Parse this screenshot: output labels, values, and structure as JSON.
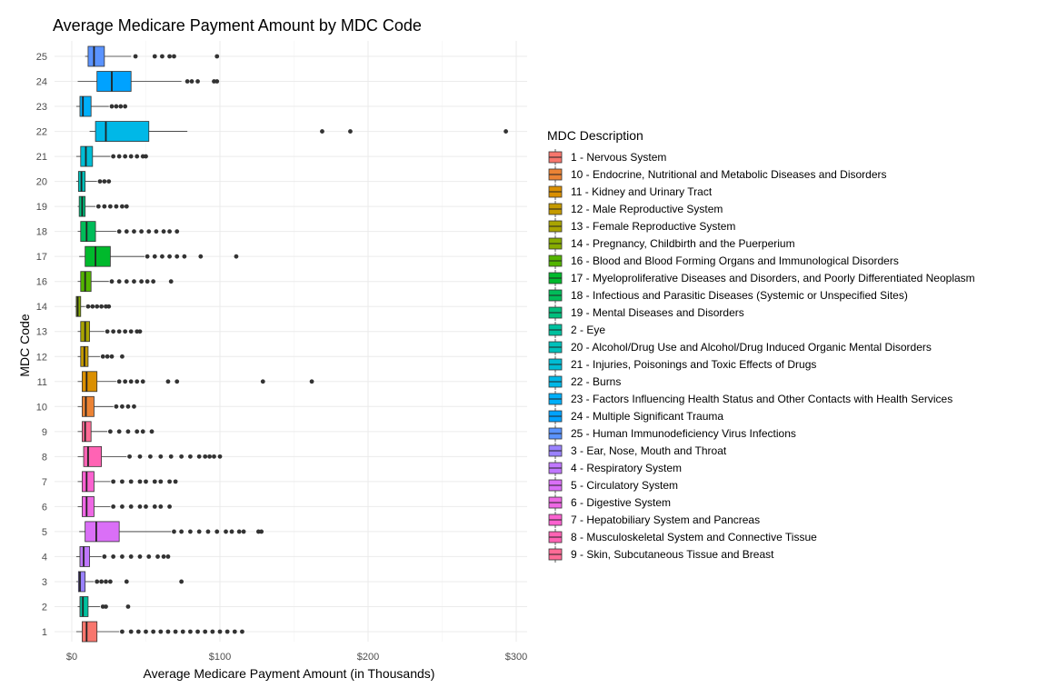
{
  "chart_data": {
    "type": "boxplot",
    "orientation": "horizontal",
    "title": "Average Medicare Payment Amount by MDC Code",
    "xlabel": "Average Medicare Payment Amount (in Thousands)",
    "ylabel": "MDC Code",
    "xlim": [
      -4,
      308
    ],
    "x_ticks": [
      0,
      100,
      200,
      300
    ],
    "x_tick_labels": [
      "$0",
      "$100",
      "$200",
      "$300"
    ],
    "grid": true,
    "legend_title": "MDC Description",
    "legend_position": "right",
    "categories": [
      "1",
      "2",
      "3",
      "4",
      "5",
      "6",
      "7",
      "8",
      "9",
      "10",
      "11",
      "12",
      "13",
      "14",
      "16",
      "17",
      "18",
      "19",
      "20",
      "21",
      "22",
      "23",
      "24",
      "25"
    ],
    "series": [
      {
        "code": "1",
        "min": 3,
        "q1": 7,
        "median": 10,
        "q3": 17,
        "max": 32,
        "outliers": [
          34,
          40,
          45,
          50,
          55,
          60,
          65,
          70,
          75,
          80,
          85,
          90,
          95,
          100,
          105,
          110,
          115
        ]
      },
      {
        "code": "2",
        "min": 4,
        "q1": 5.5,
        "median": 7.5,
        "q3": 11,
        "max": 19,
        "outliers": [
          21,
          23,
          38
        ]
      },
      {
        "code": "3",
        "min": 3,
        "q1": 4.5,
        "median": 5.5,
        "q3": 9,
        "max": 15,
        "outliers": [
          17,
          20,
          23,
          26,
          37,
          74
        ]
      },
      {
        "code": "4",
        "min": 3,
        "q1": 5.5,
        "median": 8,
        "q3": 12,
        "max": 20,
        "outliers": [
          22,
          28,
          34,
          40,
          46,
          52,
          58,
          62,
          65
        ]
      },
      {
        "code": "5",
        "min": 5,
        "q1": 9,
        "median": 16.5,
        "q3": 32,
        "max": 67,
        "outliers": [
          69,
          74,
          80,
          86,
          92,
          98,
          104,
          108,
          113,
          116,
          126,
          128
        ]
      },
      {
        "code": "6",
        "min": 4,
        "q1": 7,
        "median": 10,
        "q3": 15,
        "max": 26,
        "outliers": [
          28,
          34,
          40,
          46,
          50,
          56,
          60,
          66
        ]
      },
      {
        "code": "7",
        "min": 4,
        "q1": 7,
        "median": 10,
        "q3": 15,
        "max": 26,
        "outliers": [
          28,
          34,
          40,
          46,
          50,
          56,
          60,
          66,
          70
        ]
      },
      {
        "code": "8",
        "min": 4,
        "q1": 8,
        "median": 11,
        "q3": 20,
        "max": 37,
        "outliers": [
          39,
          46,
          53,
          60,
          67,
          74,
          80,
          86,
          90,
          93,
          96,
          100
        ]
      },
      {
        "code": "9",
        "min": 4,
        "q1": 7,
        "median": 9,
        "q3": 13,
        "max": 24,
        "outliers": [
          26,
          32,
          38,
          44,
          48,
          54
        ]
      },
      {
        "code": "10",
        "min": 4,
        "q1": 7,
        "median": 9.5,
        "q3": 15,
        "max": 28,
        "outliers": [
          30,
          34,
          38,
          42
        ]
      },
      {
        "code": "11",
        "min": 4,
        "q1": 7,
        "median": 10,
        "q3": 17,
        "max": 30,
        "outliers": [
          32,
          36,
          40,
          44,
          48,
          65,
          71,
          129,
          162
        ]
      },
      {
        "code": "12",
        "min": 4,
        "q1": 6,
        "median": 8.5,
        "q3": 11,
        "max": 19,
        "outliers": [
          21,
          24,
          27,
          34
        ]
      },
      {
        "code": "13",
        "min": 4,
        "q1": 6,
        "median": 9,
        "q3": 12,
        "max": 22,
        "outliers": [
          24,
          28,
          32,
          36,
          40,
          44,
          46
        ]
      },
      {
        "code": "14",
        "min": 2,
        "q1": 3,
        "median": 4,
        "q3": 6,
        "max": 9,
        "outliers": [
          11,
          14,
          17,
          20,
          23,
          25
        ]
      },
      {
        "code": "16",
        "min": 4,
        "q1": 6,
        "median": 9,
        "q3": 13,
        "max": 25,
        "outliers": [
          27,
          32,
          37,
          42,
          47,
          51,
          55,
          67
        ]
      },
      {
        "code": "17",
        "min": 5,
        "q1": 9,
        "median": 16,
        "q3": 26,
        "max": 49,
        "outliers": [
          51,
          56,
          61,
          66,
          71,
          76,
          87,
          111
        ]
      },
      {
        "code": "18",
        "min": 4,
        "q1": 6,
        "median": 10,
        "q3": 16,
        "max": 30,
        "outliers": [
          32,
          37,
          42,
          47,
          52,
          57,
          62,
          66,
          71
        ]
      },
      {
        "code": "19",
        "min": 4,
        "q1": 5,
        "median": 7,
        "q3": 9,
        "max": 16,
        "outliers": [
          18,
          22,
          26,
          30,
          34,
          37
        ]
      },
      {
        "code": "20",
        "min": 3,
        "q1": 4.5,
        "median": 6.5,
        "q3": 9,
        "max": 17,
        "outliers": [
          19,
          22,
          25
        ]
      },
      {
        "code": "21",
        "min": 3,
        "q1": 6,
        "median": 9.5,
        "q3": 14,
        "max": 26,
        "outliers": [
          28,
          32,
          36,
          40,
          44,
          48,
          50
        ]
      },
      {
        "code": "22",
        "min": 12,
        "q1": 16,
        "median": 23,
        "q3": 52,
        "max": 78,
        "outliers": [
          169,
          188,
          293
        ]
      },
      {
        "code": "23",
        "min": 3,
        "q1": 5.5,
        "median": 7.5,
        "q3": 13,
        "max": 25,
        "outliers": [
          27,
          30,
          33,
          36
        ]
      },
      {
        "code": "24",
        "min": 4,
        "q1": 17,
        "median": 27,
        "q3": 40,
        "max": 74,
        "outliers": [
          78,
          81,
          85,
          96,
          98
        ]
      },
      {
        "code": "25",
        "min": 9,
        "q1": 11,
        "median": 15,
        "q3": 22,
        "max": 40,
        "outliers": [
          43,
          56,
          61,
          66,
          69,
          98
        ]
      }
    ],
    "legend": [
      {
        "label": "1 - Nervous System",
        "color": "#F8766D"
      },
      {
        "label": "10 - Endocrine, Nutritional and Metabolic Diseases and Disorders",
        "color": "#EB8335"
      },
      {
        "label": "11 - Kidney and Urinary Tract",
        "color": "#DA8F00"
      },
      {
        "label": "12 - Male Reproductive System",
        "color": "#C49A00"
      },
      {
        "label": "13 - Female Reproductive System",
        "color": "#A9A400"
      },
      {
        "label": "14 - Pregnancy, Childbirth and the Puerperium",
        "color": "#87AC00"
      },
      {
        "label": "16 - Blood and Blood Forming Organs and Immunological Disorders",
        "color": "#53B400"
      },
      {
        "label": "17 - Myeloproliferative Diseases and Disorders, and Poorly Differentiated Neoplasm",
        "color": "#00B92C"
      },
      {
        "label": "18 - Infectious and Parasitic Diseases (Systemic or Unspecified Sites)",
        "color": "#00BC59"
      },
      {
        "label": "19 - Mental Diseases and Disorders",
        "color": "#00BF7D"
      },
      {
        "label": "2 - Eye",
        "color": "#00C09E"
      },
      {
        "label": "20 - Alcohol/Drug Use and Alcohol/Drug Induced Organic Mental Disorders",
        "color": "#00C0BA"
      },
      {
        "label": "21 - Injuries, Poisonings and Toxic Effects of Drugs",
        "color": "#00BDD4"
      },
      {
        "label": "22 - Burns",
        "color": "#00B8E7"
      },
      {
        "label": "23 - Factors Influencing Health Status and Other Contacts with Health Services",
        "color": "#00AFF9"
      },
      {
        "label": "24 - Multiple Significant Trauma",
        "color": "#00A2FF"
      },
      {
        "label": "25 - Human Immunodeficiency Virus Infections",
        "color": "#5A93FF"
      },
      {
        "label": "3 - Ear, Nose, Mouth and Throat",
        "color": "#9A82FF"
      },
      {
        "label": "4 - Respiratory System",
        "color": "#C077FF"
      },
      {
        "label": "5 - Circulatory System",
        "color": "#DA6FF7"
      },
      {
        "label": "6 - Digestive System",
        "color": "#EE68E4"
      },
      {
        "label": "7 - Hepatobiliary System and Pancreas",
        "color": "#FB61CF"
      },
      {
        "label": "8 - Musculoskeletal System and Connective Tissue",
        "color": "#FF63B4"
      },
      {
        "label": "9 - Skin, Subcutaneous Tissue and Breast",
        "color": "#FF6B96"
      }
    ]
  }
}
